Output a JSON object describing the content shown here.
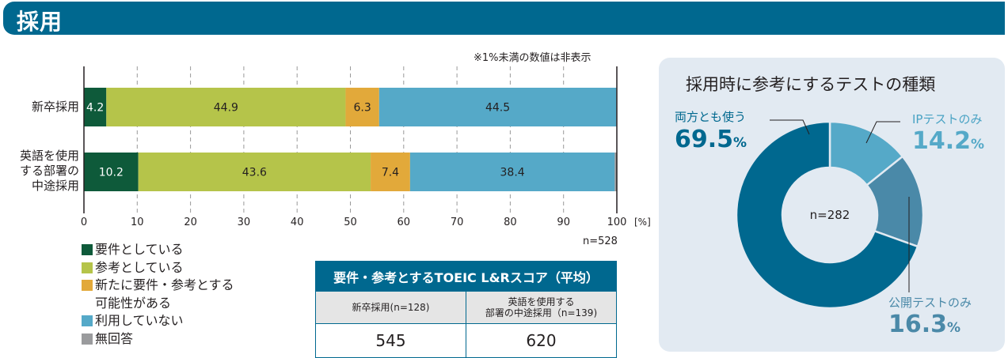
{
  "header": {
    "title": "採用"
  },
  "chart_data": [
    {
      "type": "bar",
      "orientation": "horizontal-stacked",
      "note": "※1%未満の数値は非表示",
      "categories": [
        "新卒採用",
        "英語を使用する部署の中途採用"
      ],
      "category_lines": [
        [
          "新卒採用"
        ],
        [
          "英語を使用",
          "する部署の",
          "中途採用"
        ]
      ],
      "series": [
        {
          "name": "要件としている",
          "color": "#0e5a3a",
          "values": [
            4.2,
            10.2
          ],
          "label_color": "#ffffff"
        },
        {
          "name": "参考としている",
          "color": "#b5c44a",
          "values": [
            44.9,
            43.6
          ],
          "label_color": "#231f20"
        },
        {
          "name": "新たに要件・参考とする可能性がある",
          "legend_lines": [
            "新たに要件・参考とする",
            "可能性がある"
          ],
          "color": "#e2a93a",
          "values": [
            6.3,
            7.4
          ],
          "label_color": "#231f20"
        },
        {
          "name": "利用していない",
          "color": "#55a9c8",
          "values": [
            44.5,
            38.4
          ],
          "label_color": "#231f20"
        },
        {
          "name": "無回答",
          "color": "#9a9b9d",
          "values": [
            0.1,
            0.4
          ],
          "label_color": "#231f20",
          "hidden_labels": true
        }
      ],
      "xlim": [
        0,
        100
      ],
      "xticks": [
        "0",
        "10",
        "20",
        "30",
        "40",
        "50",
        "60",
        "70",
        "80",
        "90",
        "100"
      ],
      "xunit": "[%]",
      "n": "n=528",
      "grid": true
    },
    {
      "type": "pie",
      "title": "採用時に参考にするテストの種類",
      "center_label": "n=282",
      "slices": [
        {
          "name": "IPテストのみ",
          "value": 14.2,
          "color": "#55a9c8",
          "pct_text": "14.2"
        },
        {
          "name": "公開テストのみ",
          "value": 16.3,
          "color": "#4a89a8",
          "pct_text": "16.3"
        },
        {
          "name": "両方とも使う",
          "value": 69.5,
          "color": "#00688f",
          "pct_text": "69.5"
        }
      ],
      "pct_unit": "%"
    }
  ],
  "score_table": {
    "title": "要件・参考とするTOEIC L&Rスコア（平均）",
    "columns": [
      {
        "header_lines": [
          "新卒採用(n=128)"
        ],
        "value": "545"
      },
      {
        "header_lines": [
          "英語を使用する",
          "部署の中途採用（n=139)"
        ],
        "value": "620"
      }
    ]
  }
}
